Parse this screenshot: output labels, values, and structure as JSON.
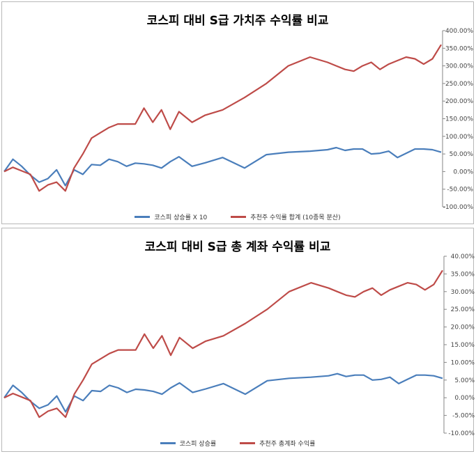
{
  "chart_data": [
    {
      "type": "line",
      "title": "코스피 대비 S급 가치주 수익률 비교",
      "ylim": [
        -100,
        400
      ],
      "y_ticks": [
        "400.00%",
        "350.00%",
        "300.00%",
        "250.00%",
        "200.00%",
        "150.00%",
        "100.00%",
        "50.00%",
        "0.00%",
        "-50.00%",
        "-100.00%"
      ],
      "x": [
        0,
        2,
        4,
        6,
        8,
        10,
        12,
        14,
        16,
        18,
        20,
        22,
        24,
        26,
        28,
        30,
        32,
        34,
        36,
        38,
        40,
        43,
        46,
        50,
        55,
        60,
        65,
        70,
        74,
        76,
        78,
        80,
        82,
        84,
        86,
        88,
        90,
        92,
        94,
        96,
        98,
        100
      ],
      "series": [
        {
          "name": "코스피 상승률 X 10",
          "color": "#4a7ebb",
          "values": [
            0,
            35,
            15,
            -10,
            -30,
            -20,
            5,
            -40,
            5,
            -8,
            20,
            18,
            35,
            28,
            15,
            24,
            22,
            18,
            10,
            28,
            42,
            15,
            25,
            40,
            10,
            48,
            55,
            58,
            62,
            68,
            60,
            64,
            64,
            50,
            52,
            58,
            40,
            52,
            64,
            64,
            62,
            55
          ]
        },
        {
          "name": "추천주 수익률 합계 (10종목 분산)",
          "color": "#be4b48",
          "values": [
            0,
            12,
            2,
            -8,
            -55,
            -38,
            -30,
            -55,
            10,
            50,
            95,
            110,
            125,
            135,
            135,
            135,
            180,
            140,
            175,
            120,
            170,
            140,
            160,
            175,
            210,
            250,
            300,
            325,
            310,
            300,
            290,
            285,
            300,
            310,
            290,
            305,
            315,
            325,
            320,
            305,
            320,
            360
          ]
        }
      ]
    },
    {
      "type": "line",
      "title": "코스피 대비 S급 총 계좌 수익률 비교",
      "ylim": [
        -10,
        40
      ],
      "y_ticks": [
        "40.00%",
        "35.00%",
        "30.00%",
        "25.00%",
        "20.00%",
        "15.00%",
        "10.00%",
        "5.00%",
        "0.00%",
        "-5.00%",
        "-10.00%"
      ],
      "x": [
        0,
        2,
        4,
        6,
        8,
        10,
        12,
        14,
        16,
        18,
        20,
        22,
        24,
        26,
        28,
        30,
        32,
        34,
        36,
        38,
        40,
        43,
        46,
        50,
        55,
        60,
        65,
        70,
        74,
        76,
        78,
        80,
        82,
        84,
        86,
        88,
        90,
        92,
        94,
        96,
        98,
        100
      ],
      "series": [
        {
          "name": "코스피 상승률",
          "color": "#4a7ebb",
          "values": [
            0,
            3.5,
            1.5,
            -1,
            -3,
            -2,
            0.5,
            -4,
            0.5,
            -0.8,
            2,
            1.8,
            3.5,
            2.8,
            1.5,
            2.4,
            2.2,
            1.8,
            1,
            2.8,
            4.2,
            1.5,
            2.5,
            4,
            1,
            4.8,
            5.5,
            5.8,
            6.2,
            6.8,
            6,
            6.4,
            6.4,
            5,
            5.2,
            5.8,
            4,
            5.2,
            6.4,
            6.4,
            6.2,
            5.5
          ]
        },
        {
          "name": "추천주 총계좌 수익률",
          "color": "#be4b48",
          "values": [
            0,
            1.2,
            0.2,
            -0.8,
            -5.5,
            -3.8,
            -3,
            -5.5,
            1,
            5,
            9.5,
            11,
            12.5,
            13.5,
            13.5,
            13.5,
            18,
            14,
            17.5,
            12,
            17,
            14,
            16,
            17.5,
            21,
            25,
            30,
            32.5,
            31,
            30,
            29,
            28.5,
            30,
            31,
            29,
            30.5,
            31.5,
            32.5,
            32,
            30.5,
            32,
            36
          ]
        }
      ]
    }
  ]
}
